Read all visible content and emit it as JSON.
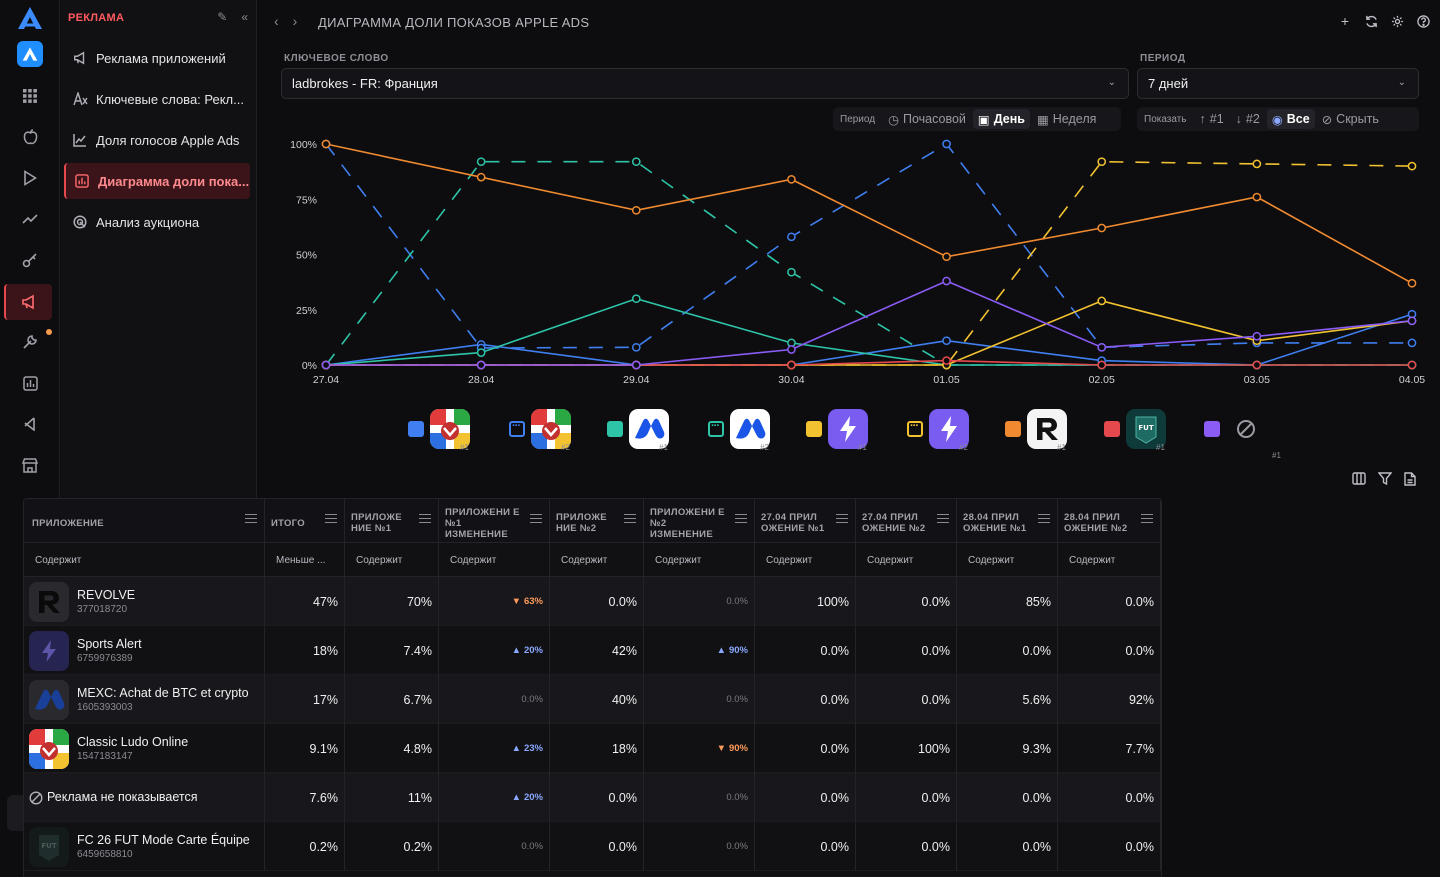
{
  "sidebar": {
    "section_title": "РЕКЛАМА",
    "items": [
      {
        "label": "Реклама приложений",
        "icon": "megaphone-icon"
      },
      {
        "label": "Ключевые слова: Рекл...",
        "icon": "keywords-icon"
      },
      {
        "label": "Доля голосов Apple Ads",
        "icon": "line-chart-icon"
      },
      {
        "label": "Диаграмма доли пока...",
        "icon": "bar-chart-icon"
      },
      {
        "label": "Анализ аукциона",
        "icon": "auction-icon"
      }
    ]
  },
  "header": {
    "title": "ДИАГРАММА ДОЛИ ПОКАЗОВ APPLE ADS"
  },
  "filters": {
    "keyword_label": "КЛЮЧЕВОЕ СЛОВО",
    "keyword_value": "ladbrokes - FR: Франция",
    "period_label": "ПЕРИОД",
    "period_value": "7 дней"
  },
  "period_toggle": {
    "label": "Период",
    "options": [
      "Почасовой",
      "День",
      "Неделя"
    ],
    "selected": "День"
  },
  "show_toggle": {
    "label": "Показать",
    "options": [
      "#1",
      "#2",
      "Все",
      "Скрыть"
    ],
    "selected": "Все"
  },
  "chart_data": {
    "type": "line",
    "x": [
      "27.04",
      "28.04",
      "29.04",
      "30.04",
      "01.05",
      "02.05",
      "03.05",
      "04.05"
    ],
    "y_ticks": [
      "100%",
      "75%",
      "50%",
      "25%",
      "0%"
    ],
    "ylim": [
      0,
      100
    ],
    "series": [
      {
        "app": "Classic Ludo Online",
        "rank": "#1",
        "color": "#3f7ff0",
        "dashed": false,
        "values": [
          0,
          9.3,
          0,
          0,
          11,
          2,
          0,
          23
        ]
      },
      {
        "app": "Classic Ludo Online",
        "rank": "#2",
        "color": "#3f7ff0",
        "dashed": true,
        "values": [
          100,
          7.7,
          8,
          58,
          100,
          8,
          10,
          10
        ]
      },
      {
        "app": "MEXC",
        "rank": "#1",
        "color": "#2ec4a8",
        "dashed": false,
        "values": [
          0,
          5.6,
          30,
          10,
          0,
          0,
          0,
          0
        ]
      },
      {
        "app": "MEXC",
        "rank": "#2",
        "color": "#2ec4a8",
        "dashed": true,
        "values": [
          0,
          92,
          92,
          42,
          0,
          0,
          0,
          0
        ]
      },
      {
        "app": "Sports Alert",
        "rank": "#1",
        "color": "#f2c230",
        "dashed": false,
        "values": [
          0,
          0,
          0,
          0,
          0,
          29,
          11,
          20
        ]
      },
      {
        "app": "Sports Alert",
        "rank": "#2",
        "color": "#f2c230",
        "dashed": true,
        "values": [
          0,
          0,
          0,
          0,
          0,
          92,
          91,
          90
        ]
      },
      {
        "app": "REVOLVE",
        "rank": "#1",
        "color": "#f08a30",
        "dashed": false,
        "values": [
          100,
          85,
          70,
          84,
          49,
          62,
          76,
          37
        ]
      },
      {
        "app": "FC 26 FUT Mode Carte Équipe",
        "rank": "#1",
        "color": "#e5484d",
        "dashed": false,
        "values": [
          0,
          0,
          0,
          0,
          2,
          0,
          0,
          0
        ]
      },
      {
        "app": "Реклама не показывается",
        "rank": "#1",
        "color": "#8b5cf6",
        "dashed": false,
        "values": [
          0,
          0,
          0,
          7,
          38,
          8,
          13,
          20
        ]
      }
    ]
  },
  "legend": [
    {
      "color": "#3f7ff0",
      "style": "solid",
      "app": "ludo",
      "tag": "#1"
    },
    {
      "color": "#3f7ff0",
      "style": "dots",
      "app": "ludo",
      "tag": "#2"
    },
    {
      "color": "#2ec4a8",
      "style": "solid",
      "app": "mexc",
      "tag": "#1"
    },
    {
      "color": "#2ec4a8",
      "style": "dots",
      "app": "mexc",
      "tag": "#2"
    },
    {
      "color": "#f2c230",
      "style": "solid",
      "app": "sports",
      "tag": "#1"
    },
    {
      "color": "#f2c230",
      "style": "dots",
      "app": "sports",
      "tag": "#2"
    },
    {
      "color": "#f08a30",
      "style": "solid",
      "app": "revolve",
      "tag": "#1"
    },
    {
      "color": "#e5484d",
      "style": "solid",
      "app": "fut",
      "tag": "#1"
    },
    {
      "color": "#8b5cf6",
      "style": "solid",
      "app": "none",
      "tag": "#1"
    }
  ],
  "table": {
    "columns": [
      {
        "label": "ПРИЛОЖЕНИЕ",
        "filter": "Содержит"
      },
      {
        "label": "ИТОГО",
        "filter": "Меньше ..."
      },
      {
        "label": "ПРИЛОЖЕ НИЕ №1",
        "filter": "Содержит"
      },
      {
        "label": "ПРИЛОЖЕНИ Е №1 ИЗМЕНЕНИЕ",
        "filter": "Содержит"
      },
      {
        "label": "ПРИЛОЖЕ НИЕ №2",
        "filter": "Содержит"
      },
      {
        "label": "ПРИЛОЖЕНИ Е №2 ИЗМЕНЕНИЕ",
        "filter": "Содержит"
      },
      {
        "label": "27.04 ПРИЛ ОЖЕНИЕ №1",
        "filter": "Содержит"
      },
      {
        "label": "27.04 ПРИЛ ОЖЕНИЕ №2",
        "filter": "Содержит"
      },
      {
        "label": "28.04 ПРИЛ ОЖЕНИЕ №1",
        "filter": "Содержит"
      },
      {
        "label": "28.04 ПРИЛ ОЖЕНИЕ №2",
        "filter": "Содержит"
      }
    ],
    "rows": [
      {
        "name": "REVOLVE",
        "id": "377018720",
        "icon": "revolve",
        "total": "47%",
        "a1": "70%",
        "a1c": {
          "dir": "down",
          "v": "63%"
        },
        "a2": "0.0%",
        "a2c": {
          "dir": "zero",
          "v": "0.0%"
        },
        "d1": "100%",
        "d2": "0.0%",
        "e1": "85%",
        "e2": "0.0%"
      },
      {
        "name": "Sports Alert",
        "id": "6759976389",
        "icon": "sports",
        "total": "18%",
        "a1": "7.4%",
        "a1c": {
          "dir": "up",
          "v": "20%"
        },
        "a2": "42%",
        "a2c": {
          "dir": "up",
          "v": "90%"
        },
        "d1": "0.0%",
        "d2": "0.0%",
        "e1": "0.0%",
        "e2": "0.0%"
      },
      {
        "name": "MEXC: Achat de BTC et crypto",
        "id": "1605393003",
        "icon": "mexc",
        "total": "17%",
        "a1": "6.7%",
        "a1c": {
          "dir": "zero",
          "v": "0.0%"
        },
        "a2": "40%",
        "a2c": {
          "dir": "zero",
          "v": "0.0%"
        },
        "d1": "0.0%",
        "d2": "0.0%",
        "e1": "5.6%",
        "e2": "92%"
      },
      {
        "name": "Classic Ludo Online",
        "id": "1547183147",
        "icon": "ludo",
        "total": "9.1%",
        "a1": "4.8%",
        "a1c": {
          "dir": "up",
          "v": "23%"
        },
        "a2": "18%",
        "a2c": {
          "dir": "down",
          "v": "90%"
        },
        "d1": "0.0%",
        "d2": "100%",
        "e1": "9.3%",
        "e2": "7.7%"
      },
      {
        "name": "Реклама не показывается",
        "id": "",
        "icon": "none",
        "total": "7.6%",
        "a1": "11%",
        "a1c": {
          "dir": "up",
          "v": "20%"
        },
        "a2": "0.0%",
        "a2c": {
          "dir": "zero",
          "v": "0.0%"
        },
        "d1": "0.0%",
        "d2": "0.0%",
        "e1": "0.0%",
        "e2": "0.0%"
      },
      {
        "name": "FC 26 FUT Mode Carte Équipe",
        "id": "6459658810",
        "icon": "fut",
        "total": "0.2%",
        "a1": "0.2%",
        "a1c": {
          "dir": "zero",
          "v": "0.0%"
        },
        "a2": "0.0%",
        "a2c": {
          "dir": "zero",
          "v": "0.0%"
        },
        "d1": "0.0%",
        "d2": "0.0%",
        "e1": "0.0%",
        "e2": "0.0%"
      }
    ]
  }
}
